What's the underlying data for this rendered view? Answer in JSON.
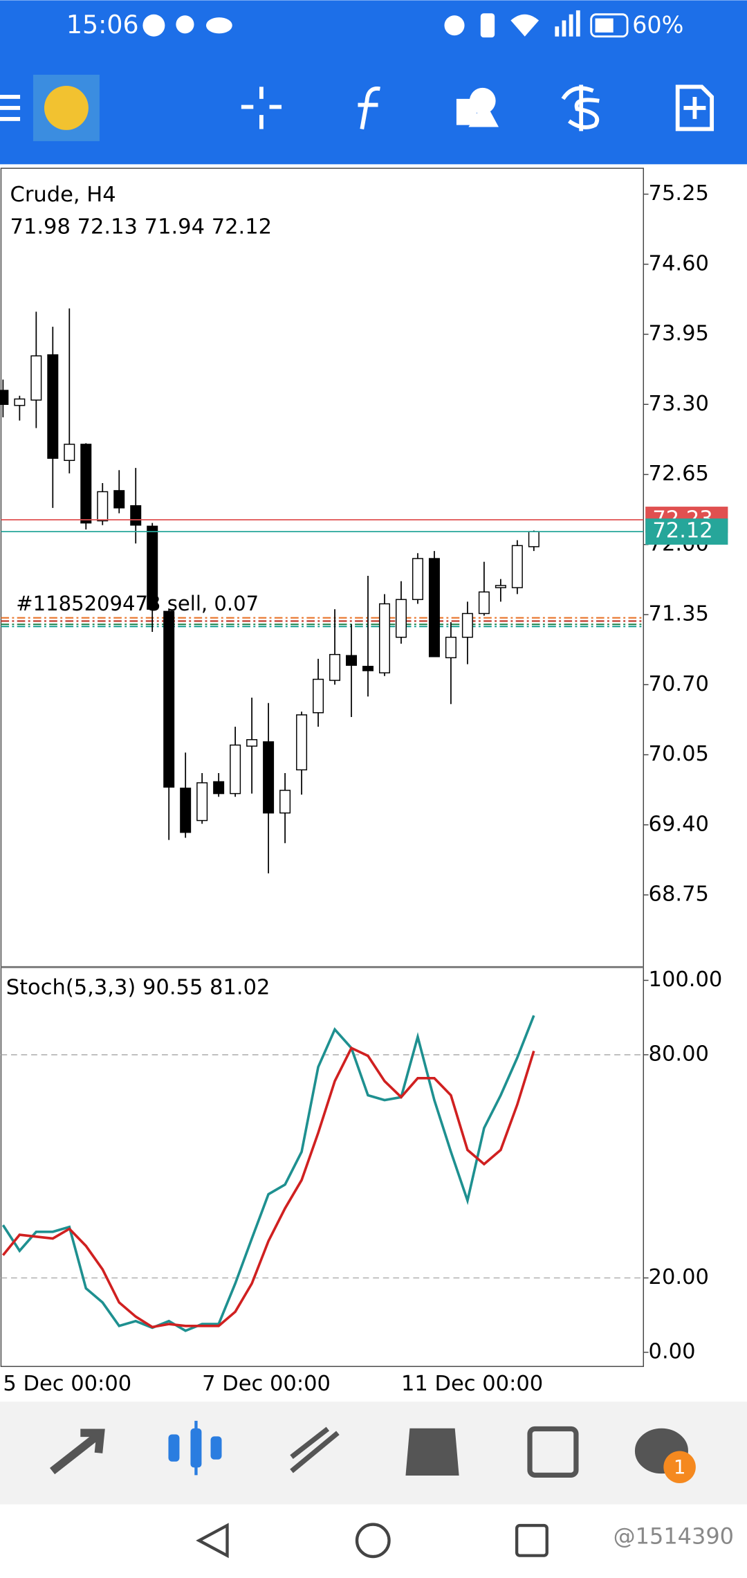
{
  "status_bar": {
    "time": "15:06",
    "battery": "60%"
  },
  "chart_data": [
    {
      "type": "candlestick",
      "title": "Crude, H4",
      "subtitle": "71.98 72.13 71.94 72.12",
      "categories": [
        "5 Dec 00:00",
        null,
        null,
        null,
        null,
        null,
        null,
        null,
        null,
        null,
        null,
        null,
        "7 Dec 00:00",
        null,
        null,
        null,
        null,
        null,
        null,
        null,
        null,
        null,
        null,
        null,
        "11 Dec 00:00",
        null,
        null,
        null,
        null,
        null,
        null,
        null,
        null
      ],
      "open": [
        73.43,
        73.29,
        73.34,
        73.76,
        72.78,
        72.93,
        72.22,
        72.5,
        72.36,
        72.17,
        71.38,
        69.74,
        69.44,
        69.8,
        69.69,
        70.13,
        70.17,
        69.51,
        69.91,
        70.44,
        70.74,
        70.97,
        70.87,
        70.81,
        71.14,
        71.49,
        71.87,
        70.95,
        71.14,
        71.36,
        71.6,
        71.6,
        71.98
      ],
      "high": [
        73.53,
        73.38,
        74.16,
        74.02,
        74.19,
        72.94,
        72.57,
        72.69,
        72.71,
        72.2,
        71.4,
        70.07,
        69.88,
        69.88,
        70.31,
        70.58,
        70.53,
        69.88,
        70.45,
        70.94,
        71.4,
        71.26,
        71.71,
        71.54,
        71.66,
        71.92,
        71.94,
        71.28,
        71.47,
        71.84,
        71.68,
        72.04,
        72.13
      ],
      "low": [
        73.18,
        73.15,
        73.08,
        72.34,
        72.66,
        72.14,
        72.18,
        72.29,
        72.01,
        71.19,
        69.26,
        69.28,
        69.41,
        69.66,
        69.66,
        69.69,
        68.95,
        69.23,
        69.68,
        70.31,
        70.7,
        70.4,
        70.59,
        70.78,
        71.08,
        71.45,
        70.96,
        70.52,
        70.89,
        71.34,
        71.47,
        71.54,
        71.94
      ],
      "close": [
        73.3,
        73.35,
        73.75,
        72.8,
        72.93,
        72.2,
        72.49,
        72.34,
        72.18,
        71.4,
        69.75,
        69.33,
        69.79,
        69.69,
        70.14,
        70.19,
        69.51,
        69.72,
        70.42,
        70.75,
        70.98,
        70.88,
        70.83,
        71.45,
        71.49,
        71.87,
        70.96,
        71.14,
        71.36,
        71.56,
        71.62,
        71.99,
        72.12
      ],
      "ylim": [
        68.09,
        75.49
      ],
      "yticks": [
        75.25,
        {
          "value": 74.6,
          "label": "74.60"
        },
        73.95,
        {
          "value": 73.3,
          "label": "73.30"
        },
        72.65,
        {
          "value": 72,
          "label": "72.00"
        },
        71.35,
        {
          "value": 70.7,
          "label": "70.70"
        },
        70.05,
        {
          "value": 69.4,
          "label": "69.40"
        },
        68.75
      ],
      "ask": 72.23,
      "bid": 72.12,
      "ask_color": "#e05050",
      "bid_color": "#26a69a",
      "order_label": "#1185209473 sell, 0.07",
      "order_lines": [
        {
          "value": 71.32,
          "color": "#e8742a"
        },
        {
          "value": 71.29,
          "color": "#c0392b"
        },
        {
          "value": 71.26,
          "color": "#2e8b57"
        },
        {
          "value": 71.24,
          "color": "#26a69a"
        }
      ]
    },
    {
      "type": "line",
      "title": "Stoch(5,3,3) 90.55 81.02",
      "series": [
        {
          "color": "#1e9090",
          "values": [
            34.2,
            27.3,
            32.4,
            32.4,
            33.7,
            17.2,
            13.4,
            7.1,
            8.4,
            6.6,
            8.4,
            5.8,
            7.6,
            7.6,
            18.5,
            30.6,
            42.5,
            45.1,
            53.9,
            76.7,
            86.8,
            81.8,
            69.1,
            67.8,
            68.6,
            84.8,
            67.8,
            53.9,
            40.8,
            60.3,
            69.1,
            79.2,
            90.55
          ]
        },
        {
          "color": "#d02020",
          "values": [
            26.1,
            31.6,
            31.1,
            30.6,
            33.2,
            28.6,
            22.3,
            13.4,
            9.6,
            6.8,
            7.6,
            7.1,
            7.1,
            7.1,
            10.9,
            18.5,
            29.9,
            38.7,
            46.3,
            59,
            72.9,
            81.8,
            79.7,
            72.9,
            68.6,
            73.7,
            73.7,
            69.1,
            54.4,
            50.6,
            54.4,
            66.6,
            81.02
          ]
        }
      ],
      "ylim": [
        -3.8,
        103.3
      ],
      "yticks": [
        {
          "value": 100,
          "label": "100.00"
        },
        {
          "value": 80,
          "label": "80.00"
        },
        {
          "value": 20,
          "label": "20.00"
        },
        {
          "value": 0,
          "label": "0.00"
        }
      ],
      "levels": [
        80,
        20
      ]
    }
  ],
  "bottom_nav": {
    "badge": 1
  },
  "watermark": "@1514390"
}
